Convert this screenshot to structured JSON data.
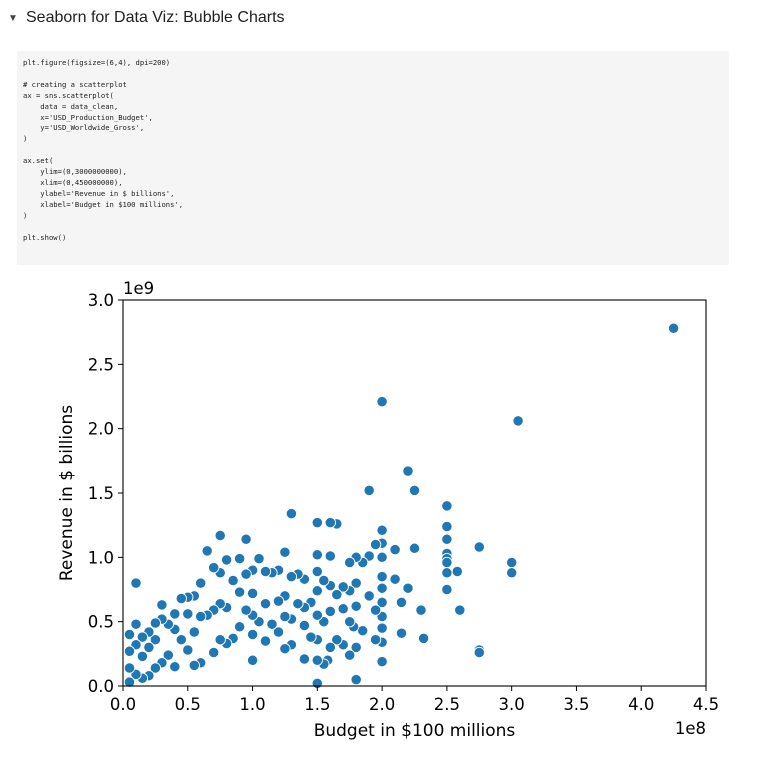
{
  "section": {
    "title": "Seaborn for Data Viz: Bubble Charts",
    "toggle_icon": "caret-down-icon"
  },
  "code_cell": {
    "lines": [
      "plt.figure(figsize=(6,4), dpi=200)",
      "",
      "# creating a scatterplot",
      "ax = sns.scatterplot(",
      "    data = data_clean,",
      "    x='USD_Production_Budget',",
      "    y='USD_Worldwide_Gross',",
      ")",
      "",
      "ax.set(",
      "    ylim=(0,3000000000),",
      "    xlim=(0,450000000),",
      "    ylabel='Revenue in $ billions',",
      "    xlabel='Budget in $100 millions',",
      ")",
      "",
      "plt.show()"
    ]
  },
  "chart_data": {
    "type": "scatter",
    "title": "",
    "xlabel": "Budget in $100 millions",
    "ylabel": "Revenue in $ billions",
    "xlim": [
      0,
      450000000
    ],
    "ylim": [
      0,
      3000000000
    ],
    "x_offset_text": "1e8",
    "y_offset_text": "1e9",
    "x_ticks": [
      0,
      50000000,
      100000000,
      150000000,
      200000000,
      250000000,
      300000000,
      350000000,
      400000000,
      450000000
    ],
    "x_tick_labels": [
      "0.0",
      "0.5",
      "1.0",
      "1.5",
      "2.0",
      "2.5",
      "3.0",
      "3.5",
      "4.0",
      "4.5"
    ],
    "y_ticks": [
      0,
      500000000,
      1000000000,
      1500000000,
      2000000000,
      2500000000,
      3000000000
    ],
    "y_tick_labels": [
      "0.0",
      "0.5",
      "1.0",
      "1.5",
      "2.0",
      "2.5",
      "3.0"
    ],
    "grid": false,
    "marker_color": "#1f77b4",
    "marker_edge_color": "#ffffff",
    "series": [
      {
        "x": [
          425000000,
          305000000,
          300000000,
          300000000,
          275000000,
          275000000,
          275000000,
          260000000,
          258000000,
          250000000,
          250000000,
          250000000,
          250000000,
          250000000,
          250000000,
          250000000,
          250000000,
          232000000,
          230000000,
          225000000,
          225000000,
          220000000,
          220000000,
          215000000,
          215000000,
          210000000,
          210000000,
          200000000,
          200000000,
          200000000,
          200000000,
          200000000,
          200000000,
          200000000,
          200000000,
          200000000,
          200000000,
          200000000,
          195000000,
          195000000,
          195000000,
          190000000,
          190000000,
          190000000,
          185000000,
          185000000,
          180000000,
          180000000,
          180000000,
          180000000,
          180000000,
          178000000,
          175000000,
          175000000,
          175000000,
          175000000,
          170000000,
          170000000,
          170000000,
          165000000,
          165000000,
          165000000,
          160000000,
          160000000,
          160000000,
          160000000,
          160000000,
          158000000,
          155000000,
          155000000,
          155000000,
          150000000,
          150000000,
          150000000,
          150000000,
          150000000,
          150000000,
          150000000,
          150000000,
          145000000,
          145000000,
          140000000,
          140000000,
          140000000,
          140000000,
          135000000,
          135000000,
          130000000,
          130000000,
          130000000,
          130000000,
          125000000,
          125000000,
          125000000,
          125000000,
          120000000,
          120000000,
          120000000,
          115000000,
          115000000,
          110000000,
          110000000,
          110000000,
          105000000,
          105000000,
          100000000,
          100000000,
          100000000,
          100000000,
          100000000,
          95000000,
          95000000,
          95000000,
          90000000,
          90000000,
          90000000,
          85000000,
          85000000,
          80000000,
          80000000,
          80000000,
          75000000,
          75000000,
          75000000,
          75000000,
          70000000,
          70000000,
          70000000,
          65000000,
          65000000,
          60000000,
          60000000,
          60000000,
          55000000,
          55000000,
          55000000,
          50000000,
          50000000,
          50000000,
          45000000,
          45000000,
          40000000,
          40000000,
          40000000,
          35000000,
          35000000,
          30000000,
          30000000,
          30000000,
          25000000,
          25000000,
          25000000,
          20000000,
          20000000,
          20000000,
          15000000,
          15000000,
          15000000,
          10000000,
          10000000,
          10000000,
          10000000,
          5000000,
          5000000,
          5000000,
          5000000
        ],
        "y": [
          2780000000,
          2060000000,
          960000000,
          880000000,
          1080000000,
          280000000,
          260000000,
          590000000,
          890000000,
          1400000000,
          1240000000,
          1140000000,
          1030000000,
          990000000,
          960000000,
          880000000,
          750000000,
          370000000,
          590000000,
          1520000000,
          1070000000,
          1670000000,
          760000000,
          650000000,
          410000000,
          1060000000,
          830000000,
          2210000000,
          1210000000,
          1110000000,
          1000000000,
          850000000,
          760000000,
          650000000,
          540000000,
          450000000,
          340000000,
          190000000,
          1100000000,
          590000000,
          360000000,
          1520000000,
          1010000000,
          700000000,
          960000000,
          430000000,
          1000000000,
          800000000,
          620000000,
          300000000,
          50000000,
          460000000,
          960000000,
          740000000,
          500000000,
          240000000,
          770000000,
          600000000,
          320000000,
          1260000000,
          710000000,
          360000000,
          1270000000,
          1010000000,
          780000000,
          580000000,
          300000000,
          200000000,
          820000000,
          500000000,
          170000000,
          1270000000,
          1020000000,
          890000000,
          740000000,
          550000000,
          360000000,
          200000000,
          20000000,
          650000000,
          380000000,
          830000000,
          610000000,
          470000000,
          210000000,
          870000000,
          640000000,
          1340000000,
          850000000,
          520000000,
          320000000,
          1040000000,
          700000000,
          540000000,
          290000000,
          900000000,
          660000000,
          420000000,
          880000000,
          480000000,
          890000000,
          640000000,
          350000000,
          990000000,
          500000000,
          900000000,
          720000000,
          550000000,
          400000000,
          200000000,
          1140000000,
          870000000,
          590000000,
          990000000,
          730000000,
          460000000,
          820000000,
          370000000,
          980000000,
          610000000,
          330000000,
          1170000000,
          880000000,
          640000000,
          360000000,
          920000000,
          590000000,
          260000000,
          1050000000,
          550000000,
          800000000,
          540000000,
          180000000,
          700000000,
          420000000,
          160000000,
          690000000,
          560000000,
          280000000,
          680000000,
          360000000,
          560000000,
          440000000,
          150000000,
          480000000,
          240000000,
          630000000,
          520000000,
          180000000,
          490000000,
          360000000,
          140000000,
          420000000,
          300000000,
          80000000,
          380000000,
          230000000,
          60000000,
          800000000,
          480000000,
          320000000,
          90000000,
          400000000,
          270000000,
          140000000,
          30000000
        ]
      }
    ]
  }
}
